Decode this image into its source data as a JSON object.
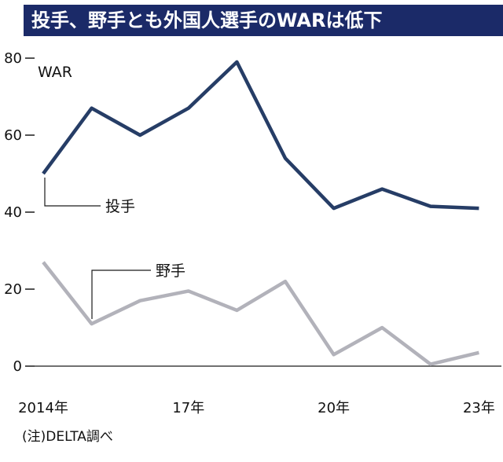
{
  "header": {
    "title": "投手、野手とも外国人選手のWARは低下"
  },
  "note": "(注)DELTA調べ",
  "colors": {
    "header_bg": "#1b2a68",
    "pitchers_line": "#263d66",
    "fielders_line": "#b2b2ba",
    "axis": "#1a1a1a",
    "text": "#111111"
  },
  "chart_data": {
    "type": "line",
    "title": "投手、野手とも外国人選手のWARは低下",
    "ylabel": "WAR",
    "xlabel": "",
    "ylim": [
      0,
      80
    ],
    "y_ticks": [
      0,
      20,
      40,
      60,
      80
    ],
    "grid": false,
    "legend_position": "annotated-on-chart",
    "x": [
      2014,
      2015,
      2016,
      2017,
      2018,
      2019,
      2020,
      2021,
      2022,
      2023
    ],
    "x_tick_labels": [
      {
        "x": 2014,
        "label": "2014年"
      },
      {
        "x": 2017,
        "label": "17年"
      },
      {
        "x": 2020,
        "label": "20年"
      },
      {
        "x": 2023,
        "label": "23年"
      }
    ],
    "series": [
      {
        "name": "投手",
        "key": "pitchers",
        "color": "#263d66",
        "values": [
          50,
          67,
          60,
          67,
          79,
          54,
          41,
          46,
          41.5,
          41
        ]
      },
      {
        "name": "野手",
        "key": "fielders",
        "color": "#b2b2ba",
        "values": [
          27,
          11,
          17,
          19.5,
          14.5,
          22,
          3,
          10,
          0.5,
          3.5
        ]
      }
    ],
    "note": "(注)DELTA調べ"
  }
}
